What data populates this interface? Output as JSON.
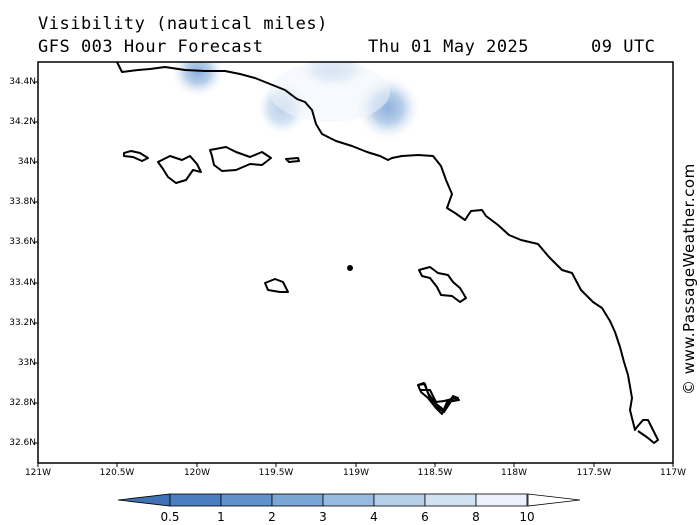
{
  "header": {
    "title": "Visibility (nautical miles)",
    "subtitle": "GFS 003 Hour Forecast",
    "date": "Thu 01 May 2025",
    "time": "09 UTC"
  },
  "credit": "© www.PassageWeather.com",
  "lat_labels": [
    "34.4N",
    "34.2N",
    "34N",
    "33.8N",
    "33.6N",
    "33.4N",
    "33.2N",
    "33N",
    "32.8N",
    "32.6N"
  ],
  "lon_labels": [
    "121W",
    "120.5W",
    "120W",
    "119.5W",
    "119W",
    "118.5W",
    "118W",
    "117.5W",
    "117W"
  ],
  "colorbar": {
    "labels": [
      "0.5",
      "1",
      "2",
      "3",
      "4",
      "6",
      "8",
      "10"
    ],
    "colors": [
      "#4a7ec0",
      "#5f91cc",
      "#7aa6d6",
      "#97bbe0",
      "#b6d0ea",
      "#d3e2f3",
      "#eaf1fa",
      "#ffffff"
    ]
  }
}
